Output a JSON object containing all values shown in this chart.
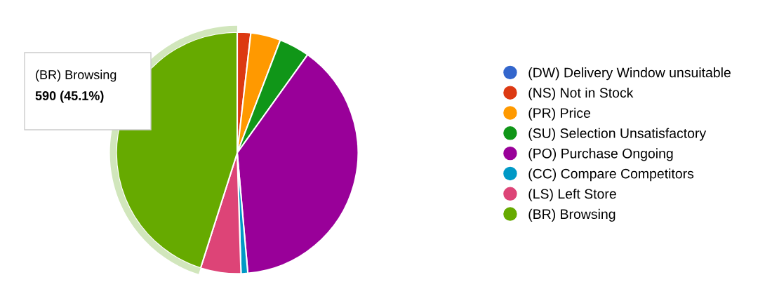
{
  "chart_data": {
    "type": "pie",
    "categories": [
      "(DW) Delivery Window unsuitable",
      "(NS) Not in Stock",
      "(PR) Price",
      "(SU) Selection Unsatisfactory",
      "(PO) Purchase Ongoing",
      "(CC) Compare Competitors",
      "(LS) Left Store",
      "(BR) Browsing"
    ],
    "values": [
      0,
      1.8,
      4.0,
      4.1,
      38.7,
      0.9,
      5.4,
      45.1
    ],
    "colors": [
      "#3366cc",
      "#dc3912",
      "#ff9900",
      "#109618",
      "#990099",
      "#0099c6",
      "#dd4477",
      "#66aa00"
    ],
    "annotations": [
      "(BR) Browsing",
      "590 (45.1%)"
    ],
    "legend": "right"
  }
}
